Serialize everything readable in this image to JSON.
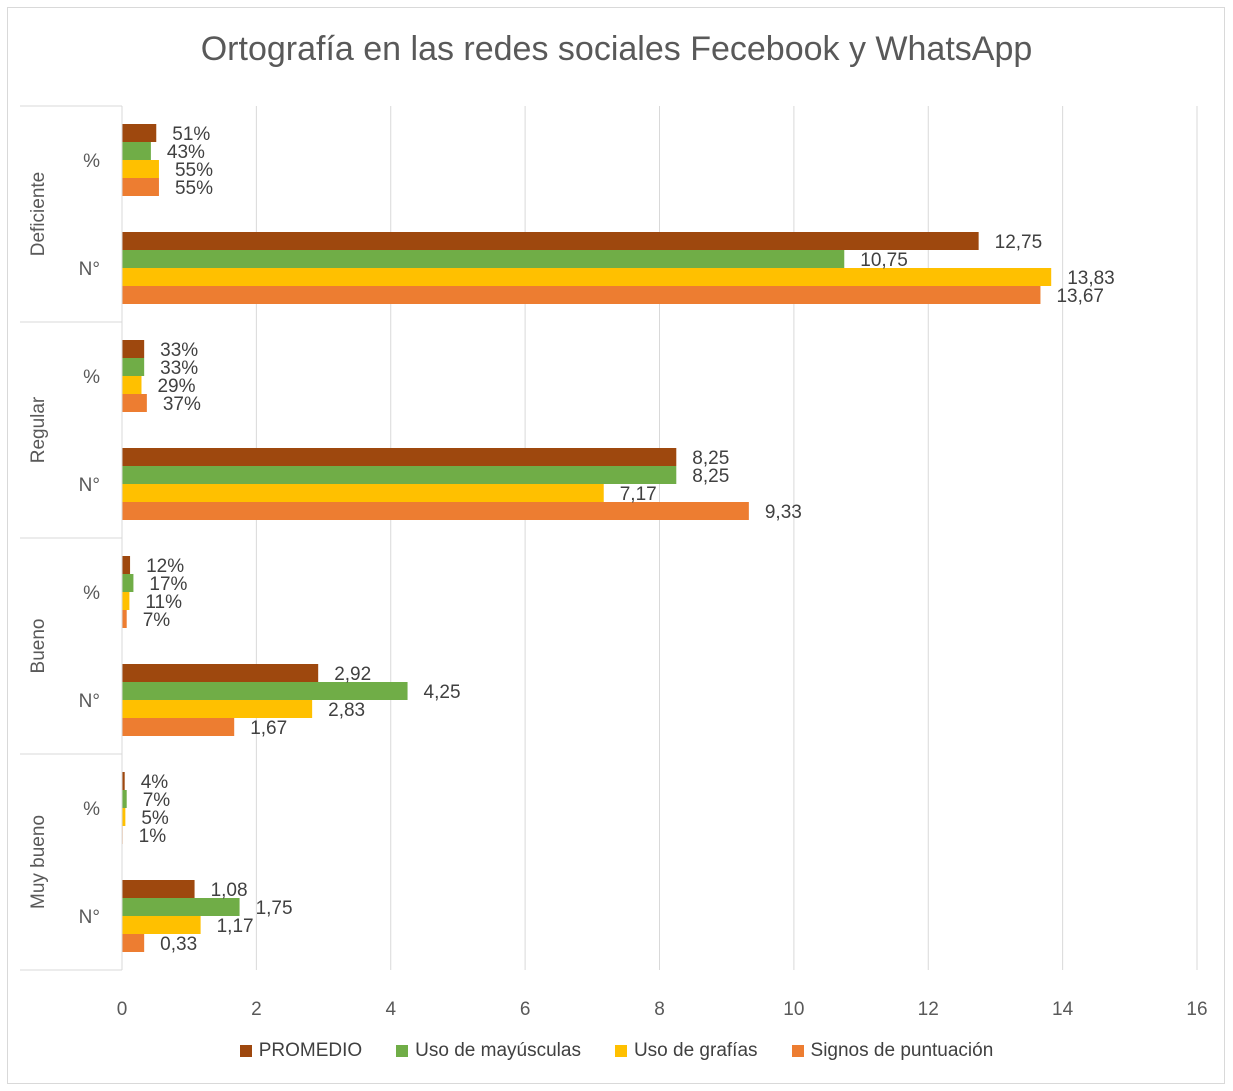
{
  "chart_data": {
    "type": "bar",
    "orientation": "horizontal",
    "title": "Ortografía en las redes sociales Fecebook y WhatsApp",
    "xlim": [
      0,
      16
    ],
    "x_ticks": [
      "0",
      "2",
      "4",
      "6",
      "8",
      "10",
      "12",
      "14",
      "16"
    ],
    "grid": true,
    "legend_position": "bottom",
    "groups": [
      {
        "label": "Deficiente",
        "rows": [
          {
            "label": "%",
            "values": [
              0.51,
              0.43,
              0.55,
              0.55
            ],
            "labels": [
              "51%",
              "43%",
              "55%",
              "55%"
            ]
          },
          {
            "label": "N°",
            "values": [
              12.75,
              10.75,
              13.83,
              13.67
            ],
            "labels": [
              "12,75",
              "10,75",
              "13,83",
              "13,67"
            ]
          }
        ]
      },
      {
        "label": "Regular",
        "rows": [
          {
            "label": "%",
            "values": [
              0.33,
              0.33,
              0.29,
              0.37
            ],
            "labels": [
              "33%",
              "33%",
              "29%",
              "37%"
            ]
          },
          {
            "label": "N°",
            "values": [
              8.25,
              8.25,
              7.17,
              9.33
            ],
            "labels": [
              "8,25",
              "8,25",
              "7,17",
              "9,33"
            ]
          }
        ]
      },
      {
        "label": "Bueno",
        "rows": [
          {
            "label": "%",
            "values": [
              0.12,
              0.17,
              0.11,
              0.07
            ],
            "labels": [
              "12%",
              "17%",
              "11%",
              "7%"
            ]
          },
          {
            "label": "N°",
            "values": [
              2.92,
              4.25,
              2.83,
              1.67
            ],
            "labels": [
              "2,92",
              "4,25",
              "2,83",
              "1,67"
            ]
          }
        ]
      },
      {
        "label": "Muy bueno",
        "rows": [
          {
            "label": "%",
            "values": [
              0.04,
              0.07,
              0.05,
              0.01
            ],
            "labels": [
              "4%",
              "7%",
              "5%",
              "1%"
            ]
          },
          {
            "label": "N°",
            "values": [
              1.08,
              1.75,
              1.17,
              0.33
            ],
            "labels": [
              "1,08",
              "1,75",
              "1,17",
              "0,33"
            ]
          }
        ]
      }
    ],
    "series": [
      {
        "name": "PROMEDIO",
        "color": "#9e480e"
      },
      {
        "name": "Uso de mayúsculas",
        "color": "#70ad47"
      },
      {
        "name": "Uso de grafías",
        "color": "#ffc000"
      },
      {
        "name": "Signos de puntuación",
        "color": "#ed7d31"
      }
    ]
  }
}
